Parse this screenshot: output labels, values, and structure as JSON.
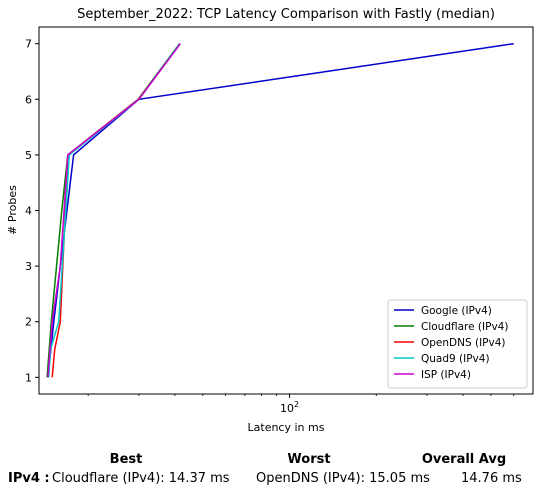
{
  "chart_data": {
    "type": "line",
    "title": "September_2022: TCP Latency Comparison with Fastly (median)",
    "xlabel": "Latency in ms",
    "ylabel": "# Probes",
    "xscale": "log",
    "xlim": [
      13.5,
      700
    ],
    "ylim": [
      0.7,
      7.3
    ],
    "xticks": [
      {
        "value": 100,
        "label": "10",
        "sup": "2"
      }
    ],
    "yticks": [
      1,
      2,
      3,
      4,
      5,
      6,
      7
    ],
    "grid": false,
    "legend_position": "lower-right",
    "series": [
      {
        "name": "Google (IPv4)",
        "color": "#0000cc",
        "x": [
          14.5,
          15.2,
          16.0,
          17.8,
          30.0,
          600.0
        ],
        "y": [
          1,
          2,
          3,
          5,
          6,
          7
        ]
      },
      {
        "name": "Cloudflare (IPv4)",
        "color": "#008000",
        "x": [
          14.4,
          14.9,
          16.2,
          17.0,
          29.8,
          41.5
        ],
        "y": [
          1,
          2,
          4,
          5,
          6,
          7
        ]
      },
      {
        "name": "OpenDNS (IPv4)",
        "color": "#ff0000",
        "x": [
          15.0,
          15.3,
          16.0,
          17.0,
          29.9,
          41.7
        ],
        "y": [
          1,
          1.5,
          2,
          5,
          6,
          7
        ]
      },
      {
        "name": "Quad9 (IPv4)",
        "color": "#00cccc",
        "x": [
          14.6,
          14.8,
          15.8,
          17.2,
          30.0,
          41.6
        ],
        "y": [
          1,
          1.5,
          2,
          5,
          6,
          7
        ]
      },
      {
        "name": "ISP (IPv4)",
        "color": "#cc00cc",
        "x": [
          14.5,
          15.0,
          16.0,
          17.0,
          30.0,
          41.8
        ],
        "y": [
          1,
          2,
          3,
          5,
          6,
          7
        ]
      }
    ]
  },
  "summary": {
    "best_header": "Best",
    "worst_header": "Worst",
    "avg_header": "Overall Avg",
    "row_label": "IPv4 :",
    "best_value": "Cloudflare (IPv4): 14.37 ms",
    "worst_value": "OpenDNS (IPv4): 15.05 ms",
    "avg_value": "14.76 ms"
  }
}
